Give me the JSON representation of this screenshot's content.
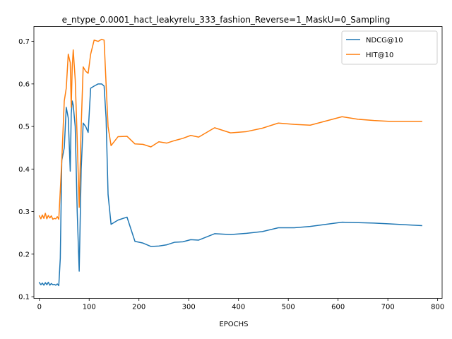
{
  "chart_data": {
    "type": "line",
    "title": "e_ntype_0.0001_hact_leakyrelu_333_fashion_Reverse=1_MaskU=0_Sampling",
    "xlabel": "EPOCHS",
    "ylabel": "",
    "xlim": [
      -11,
      809
    ],
    "ylim": [
      0.096,
      0.735
    ],
    "xticks": [
      0,
      100,
      200,
      300,
      400,
      500,
      600,
      700,
      800
    ],
    "yticks": [
      0.1,
      0.2,
      0.3,
      0.4,
      0.5,
      0.6,
      0.7
    ],
    "grid": false,
    "legend_position": "top-right",
    "series": [
      {
        "name": "NDCG@10",
        "color": "#1f77b4",
        "x": [
          0,
          3,
          6,
          9,
          12,
          15,
          18,
          21,
          24,
          27,
          30,
          33,
          36,
          39,
          42,
          45,
          50,
          54,
          58,
          62,
          64,
          66,
          68,
          72,
          76,
          80,
          84,
          88,
          93,
          98,
          103,
          110,
          118,
          125,
          130,
          134,
          138,
          144,
          158,
          176,
          192,
          208,
          224,
          240,
          256,
          272,
          288,
          304,
          320,
          352,
          384,
          416,
          448,
          480,
          512,
          544,
          576,
          608,
          640,
          672,
          704,
          736,
          768
        ],
        "y": [
          0.133,
          0.128,
          0.132,
          0.127,
          0.133,
          0.128,
          0.134,
          0.127,
          0.131,
          0.128,
          0.129,
          0.127,
          0.13,
          0.126,
          0.19,
          0.42,
          0.45,
          0.545,
          0.52,
          0.395,
          0.53,
          0.56,
          0.55,
          0.5,
          0.3,
          0.16,
          0.4,
          0.508,
          0.5,
          0.486,
          0.59,
          0.595,
          0.6,
          0.6,
          0.595,
          0.52,
          0.34,
          0.27,
          0.28,
          0.287,
          0.23,
          0.226,
          0.218,
          0.219,
          0.222,
          0.228,
          0.229,
          0.234,
          0.233,
          0.248,
          0.246,
          0.249,
          0.253,
          0.262,
          0.262,
          0.265,
          0.27,
          0.275,
          0.274,
          0.273,
          0.271,
          0.269,
          0.267
        ]
      },
      {
        "name": "HIT@10",
        "color": "#ff7f0e",
        "x": [
          0,
          3,
          6,
          9,
          12,
          15,
          18,
          21,
          24,
          27,
          30,
          33,
          36,
          39,
          42,
          45,
          50,
          54,
          58,
          62,
          64,
          66,
          68,
          72,
          76,
          80,
          84,
          88,
          93,
          98,
          103,
          110,
          118,
          125,
          130,
          134,
          138,
          144,
          158,
          176,
          192,
          208,
          224,
          240,
          256,
          272,
          288,
          304,
          320,
          352,
          384,
          416,
          448,
          480,
          512,
          544,
          576,
          608,
          640,
          672,
          704,
          736,
          768
        ],
        "y": [
          0.29,
          0.283,
          0.292,
          0.284,
          0.296,
          0.283,
          0.291,
          0.285,
          0.29,
          0.282,
          0.284,
          0.283,
          0.288,
          0.282,
          0.35,
          0.42,
          0.56,
          0.59,
          0.67,
          0.65,
          0.545,
          0.64,
          0.68,
          0.61,
          0.47,
          0.31,
          0.5,
          0.64,
          0.63,
          0.625,
          0.67,
          0.703,
          0.7,
          0.705,
          0.703,
          0.6,
          0.5,
          0.455,
          0.476,
          0.477,
          0.459,
          0.458,
          0.452,
          0.464,
          0.461,
          0.467,
          0.472,
          0.479,
          0.475,
          0.497,
          0.485,
          0.488,
          0.496,
          0.508,
          0.505,
          0.503,
          0.513,
          0.523,
          0.517,
          0.514,
          0.512,
          0.512,
          0.512
        ]
      }
    ]
  }
}
